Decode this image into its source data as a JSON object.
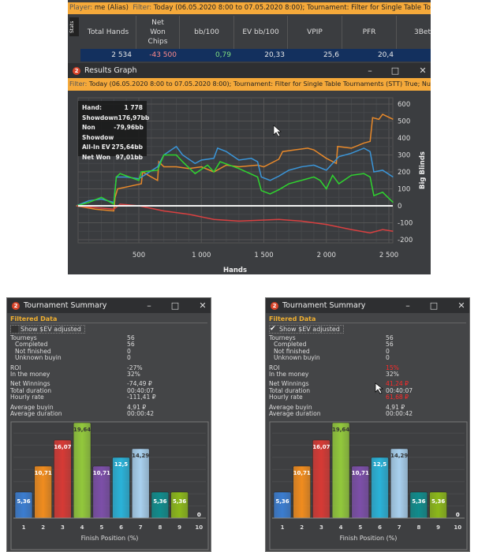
{
  "header": {
    "player_label": "Player:",
    "player": "me (Alias)",
    "filter_label": "Filter:",
    "filter": "Today (06.05.2020 8:00 to 07.05.2020 8:00); Tournament: Filter for Single Table Tournaments ("
  },
  "stats": {
    "tab": "Stats",
    "columns": [
      "Total Hands",
      "Net Won Chips",
      "bb/100",
      "EV bb/100",
      "VPIP",
      "PFR",
      "3Bet"
    ],
    "values": [
      "2 534",
      "-43 500",
      "0,79",
      "20,33",
      "25,6",
      "20,4",
      ""
    ],
    "value_colors": [
      "#e8e8e8",
      "#ff8a8a",
      "#7fe07f",
      "#e8e8e8",
      "#e8e8e8",
      "#e8e8e8",
      "#e8e8e8"
    ]
  },
  "results_graph": {
    "badge": "2",
    "title": "Results Graph",
    "filter_label": "Filter:",
    "filter": "Today (06.05.2020 8:00 to 07.05.2020 8:00); Tournament: Filter for Single Table Tournaments (STT) True; Number",
    "tooltip": [
      {
        "k": "Hand:",
        "v": "1 778"
      },
      {
        "k": "Showdown",
        "v": "176,97bb"
      },
      {
        "k": "Non Showdow",
        "v": "-79,96bb"
      },
      {
        "k": "All-In EV",
        "v": "275,64bb"
      },
      {
        "k": "Net Won",
        "v": "97,01bb"
      }
    ]
  },
  "summary_left": {
    "badge": "2",
    "title": "Tournament Summary",
    "section": "Filtered Data",
    "checkbox_label": "Show $EV adjusted",
    "checked": false,
    "rows": [
      [
        "Tourneys",
        "56"
      ],
      [
        "Completed",
        "56"
      ],
      [
        "Not finished",
        "0"
      ],
      [
        "Unknown buyin",
        "0"
      ],
      [
        "ROI",
        "-27%"
      ],
      [
        "In the money",
        "32%"
      ],
      [
        "Net Winnings",
        "-74,49 ₽"
      ],
      [
        "Total duration",
        "00:40:07"
      ],
      [
        "Hourly rate",
        "-111,41 ₽"
      ],
      [
        "Average buyin",
        "4,91 ₽"
      ],
      [
        "Average duration",
        "00:00:42"
      ]
    ],
    "red_rows": []
  },
  "summary_right": {
    "badge": "2",
    "title": "Tournament Summary",
    "section": "Filtered Data",
    "checkbox_label": "Show $EV adjusted",
    "checked": true,
    "rows": [
      [
        "Tourneys",
        "56"
      ],
      [
        "Completed",
        "56"
      ],
      [
        "Not finished",
        "0"
      ],
      [
        "Unknown buyin",
        "0"
      ],
      [
        "ROI",
        "15%"
      ],
      [
        "In the money",
        "32%"
      ],
      [
        "Net Winnings",
        "41,24 ₽"
      ],
      [
        "Total duration",
        "00:40:07"
      ],
      [
        "Hourly rate",
        "61,68 ₽"
      ],
      [
        "Average buyin",
        "4,91 ₽"
      ],
      [
        "Average duration",
        "00:00:42"
      ]
    ],
    "red_rows": [
      4,
      6,
      8
    ]
  },
  "chart_data": [
    {
      "type": "line",
      "xlabel": "Hands",
      "ylabel": "Big Blinds",
      "xlim": [
        0,
        2534
      ],
      "ylim": [
        -200,
        600
      ],
      "xticks": [
        "500",
        "1 000",
        "1 500",
        "2 000",
        "2 500"
      ],
      "yticks": [
        "600",
        "500",
        "400",
        "300",
        "200",
        "100",
        "0",
        "-100",
        "-200"
      ],
      "grid": true,
      "series": [
        {
          "color": "#e8892a",
          "x": [
            0,
            150,
            300,
            310,
            330,
            520,
            530,
            600,
            650,
            660,
            700,
            800,
            900,
            1000,
            1100,
            1200,
            1300,
            1450,
            1500,
            1620,
            1650,
            1750,
            1850,
            1900,
            2000,
            2080,
            2090,
            2200,
            2300,
            2350,
            2370,
            2420,
            2450,
            2534
          ],
          "y": [
            0,
            -20,
            -30,
            50,
            100,
            130,
            200,
            170,
            150,
            260,
            230,
            230,
            220,
            230,
            200,
            240,
            230,
            240,
            230,
            275,
            320,
            330,
            340,
            330,
            280,
            250,
            350,
            340,
            370,
            380,
            520,
            510,
            540,
            510
          ]
        },
        {
          "color": "#3a95d8",
          "x": [
            0,
            100,
            200,
            300,
            320,
            400,
            500,
            650,
            700,
            800,
            850,
            950,
            1000,
            1100,
            1130,
            1200,
            1300,
            1400,
            1450,
            1480,
            1550,
            1620,
            1700,
            1800,
            1900,
            2000,
            2050,
            2100,
            2200,
            2300,
            2350,
            2380,
            2450,
            2534
          ],
          "y": [
            0,
            30,
            40,
            20,
            170,
            170,
            160,
            230,
            300,
            350,
            300,
            250,
            270,
            280,
            340,
            320,
            270,
            280,
            260,
            170,
            150,
            175,
            210,
            230,
            240,
            210,
            250,
            290,
            310,
            340,
            320,
            200,
            210,
            170
          ]
        },
        {
          "color": "#2fd42f",
          "x": [
            0,
            100,
            200,
            300,
            320,
            350,
            500,
            520,
            650,
            700,
            800,
            850,
            950,
            1050,
            1100,
            1150,
            1300,
            1450,
            1480,
            1550,
            1620,
            1700,
            1800,
            1900,
            1950,
            2000,
            2050,
            2100,
            2200,
            2300,
            2350,
            2380,
            2450,
            2534
          ],
          "y": [
            0,
            20,
            50,
            10,
            170,
            190,
            150,
            200,
            210,
            300,
            300,
            260,
            190,
            240,
            200,
            260,
            220,
            170,
            90,
            70,
            95,
            130,
            150,
            170,
            150,
            100,
            180,
            130,
            180,
            190,
            170,
            60,
            80,
            20
          ]
        },
        {
          "color": "#d94040",
          "x": [
            0,
            300,
            350,
            500,
            700,
            900,
            1100,
            1300,
            1620,
            1800,
            2000,
            2200,
            2350,
            2450,
            2534
          ],
          "y": [
            0,
            -20,
            10,
            0,
            -30,
            -50,
            -80,
            -90,
            -80,
            -90,
            -110,
            -140,
            -160,
            -140,
            -150
          ]
        }
      ]
    },
    {
      "type": "bar",
      "xlabel": "Finish Position (%)",
      "categories": [
        "1",
        "2",
        "3",
        "4",
        "5",
        "6",
        "7",
        "8",
        "9",
        "10"
      ],
      "values": [
        5.36,
        10.71,
        16.07,
        19.64,
        10.71,
        12.5,
        14.29,
        5.36,
        5.36,
        0
      ],
      "labels": [
        "5,36",
        "10,71",
        "16,07",
        "19,64",
        "10,71",
        "12,5",
        "14,29",
        "5,36",
        "5,36",
        "0"
      ],
      "colors": [
        "#3b7dd0",
        "#f08c1e",
        "#d63a35",
        "#92c83c",
        "#7c4fa8",
        "#2ab2d8",
        "#a8d0ee",
        "#108c8c",
        "#8cb81a",
        "#888888"
      ],
      "ylim": [
        0,
        20
      ]
    },
    {
      "type": "bar",
      "xlabel": "Finish Position (%)",
      "categories": [
        "1",
        "2",
        "3",
        "4",
        "5",
        "6",
        "7",
        "8",
        "9",
        "10"
      ],
      "values": [
        5.36,
        10.71,
        16.07,
        19.64,
        10.71,
        12.5,
        14.29,
        5.36,
        5.36,
        0
      ],
      "labels": [
        "5,36",
        "10,71",
        "16,07",
        "19,64",
        "10,71",
        "12,5",
        "14,29",
        "5,36",
        "5,36",
        "0"
      ],
      "colors": [
        "#3b7dd0",
        "#f08c1e",
        "#d63a35",
        "#92c83c",
        "#7c4fa8",
        "#2ab2d8",
        "#a8d0ee",
        "#108c8c",
        "#8cb81a",
        "#888888"
      ],
      "ylim": [
        0,
        20
      ]
    }
  ]
}
